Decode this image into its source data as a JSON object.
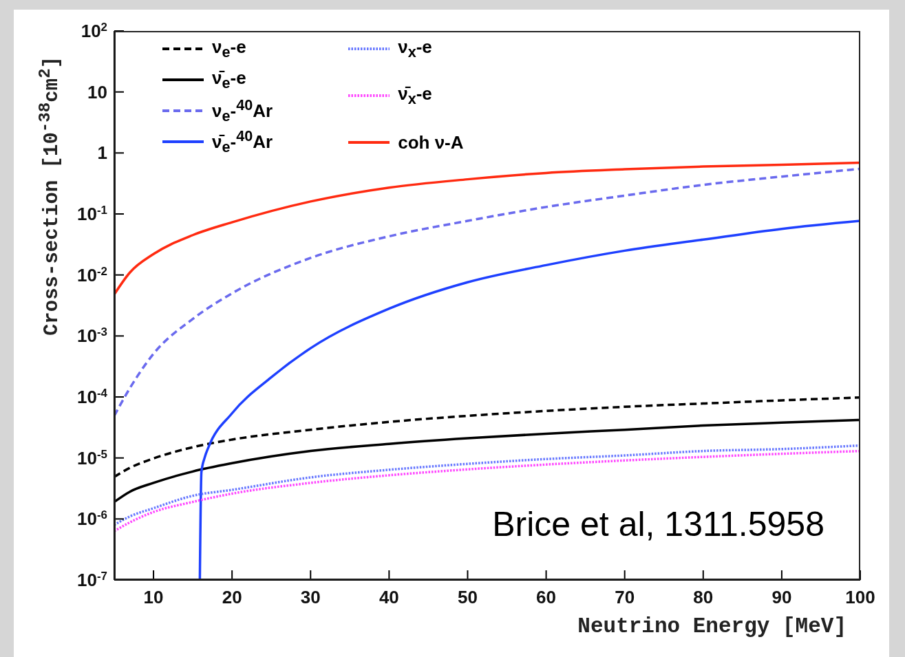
{
  "chart_data": {
    "type": "line",
    "xlabel": "Neutrino Energy [MeV]",
    "ylabel": "Cross-section [10$^{-38}$cm$^{2}$]",
    "x": [
      5,
      7,
      10,
      15,
      20,
      30,
      40,
      50,
      60,
      70,
      80,
      90,
      100
    ],
    "xlim": [
      5,
      100
    ],
    "xticks": [
      10,
      20,
      30,
      40,
      50,
      60,
      70,
      80,
      90,
      100
    ],
    "ylim": [
      1e-07,
      100
    ],
    "yticks": [
      {
        "value": 1e-07,
        "label": "10$^{-7}$"
      },
      {
        "value": 1e-06,
        "label": "10$^{-6}$"
      },
      {
        "value": 1e-05,
        "label": "10$^{-5}$"
      },
      {
        "value": 0.0001,
        "label": "10$^{-4}$"
      },
      {
        "value": 0.001,
        "label": "10$^{-3}$"
      },
      {
        "value": 0.01,
        "label": "10$^{-2}$"
      },
      {
        "value": 0.1,
        "label": "10$^{-1}$"
      },
      1,
      10,
      {
        "value": 100,
        "label": "10$^{2}$"
      }
    ],
    "log": "y",
    "legend": "top left",
    "series": [
      {
        "name": "ν$_{e}$-e",
        "color": "#000000",
        "line_style": "dashed",
        "values": [
          4.9e-06,
          6.9e-06,
          9.8e-06,
          1.5e-05,
          2e-05,
          2.9e-05,
          3.9e-05,
          4.9e-05,
          5.9e-05,
          6.9e-05,
          7.8e-05,
          8.8e-05,
          9.8e-05
        ]
      },
      {
        "name": "ν̄$_{e}$-e",
        "color": "#000000",
        "line_style": "solid",
        "values": [
          1.9e-06,
          2.8e-06,
          3.9e-06,
          6e-06,
          8.2e-06,
          1.3e-05,
          1.7e-05,
          2.1e-05,
          2.5e-05,
          2.9e-05,
          3.4e-05,
          3.8e-05,
          4.2e-05
        ]
      },
      {
        "name": "ν$_{e}$-$^{40}$Ar",
        "color": "#6a6aee",
        "line_style": "dashed",
        "values": [
          4.9e-05,
          0.00014,
          0.00051,
          0.0019,
          0.005,
          0.019,
          0.043,
          0.077,
          0.13,
          0.2,
          0.3,
          0.41,
          0.55
        ]
      },
      {
        "name": "ν̄$_{e}$-$^{40}$Ar",
        "color": "#1e40ff",
        "line_style": "solid",
        "x": [
          15.9,
          16.1,
          16.5,
          17,
          20,
          25,
          30,
          40,
          50,
          60,
          70,
          80,
          90,
          100
        ],
        "values": [
          1e-07,
          5.8e-06,
          1e-05,
          1.5e-05,
          5.4e-05,
          0.00021,
          0.00063,
          0.0028,
          0.0076,
          0.0145,
          0.025,
          0.038,
          0.057,
          0.077
        ]
      },
      {
        "name": "ν$_{x}$-e",
        "color": "#6677ff",
        "line_style": "dotted",
        "values": [
          8e-07,
          1.1e-06,
          1.5e-06,
          2.4e-06,
          3e-06,
          4.8e-06,
          6.4e-06,
          8e-06,
          9.6e-06,
          1.1e-05,
          1.3e-05,
          1.4e-05,
          1.6e-05
        ]
      },
      {
        "name": "ν̄$_{x}$-e",
        "color": "#ff44ff",
        "line_style": "dotted",
        "values": [
          6.3e-07,
          8.8e-07,
          1.3e-06,
          1.9e-06,
          2.6e-06,
          3.9e-06,
          5.2e-06,
          6.5e-06,
          7.8e-06,
          9.1e-06,
          1.04e-05,
          1.17e-05,
          1.3e-05
        ]
      },
      {
        "name": "coh ν-A",
        "color": "#ff2a10",
        "line_style": "solid",
        "values": [
          0.0048,
          0.011,
          0.022,
          0.045,
          0.073,
          0.16,
          0.27,
          0.37,
          0.47,
          0.54,
          0.6,
          0.64,
          0.69
        ]
      }
    ],
    "annotations": [
      "Brice et al, 1311.5958"
    ]
  }
}
